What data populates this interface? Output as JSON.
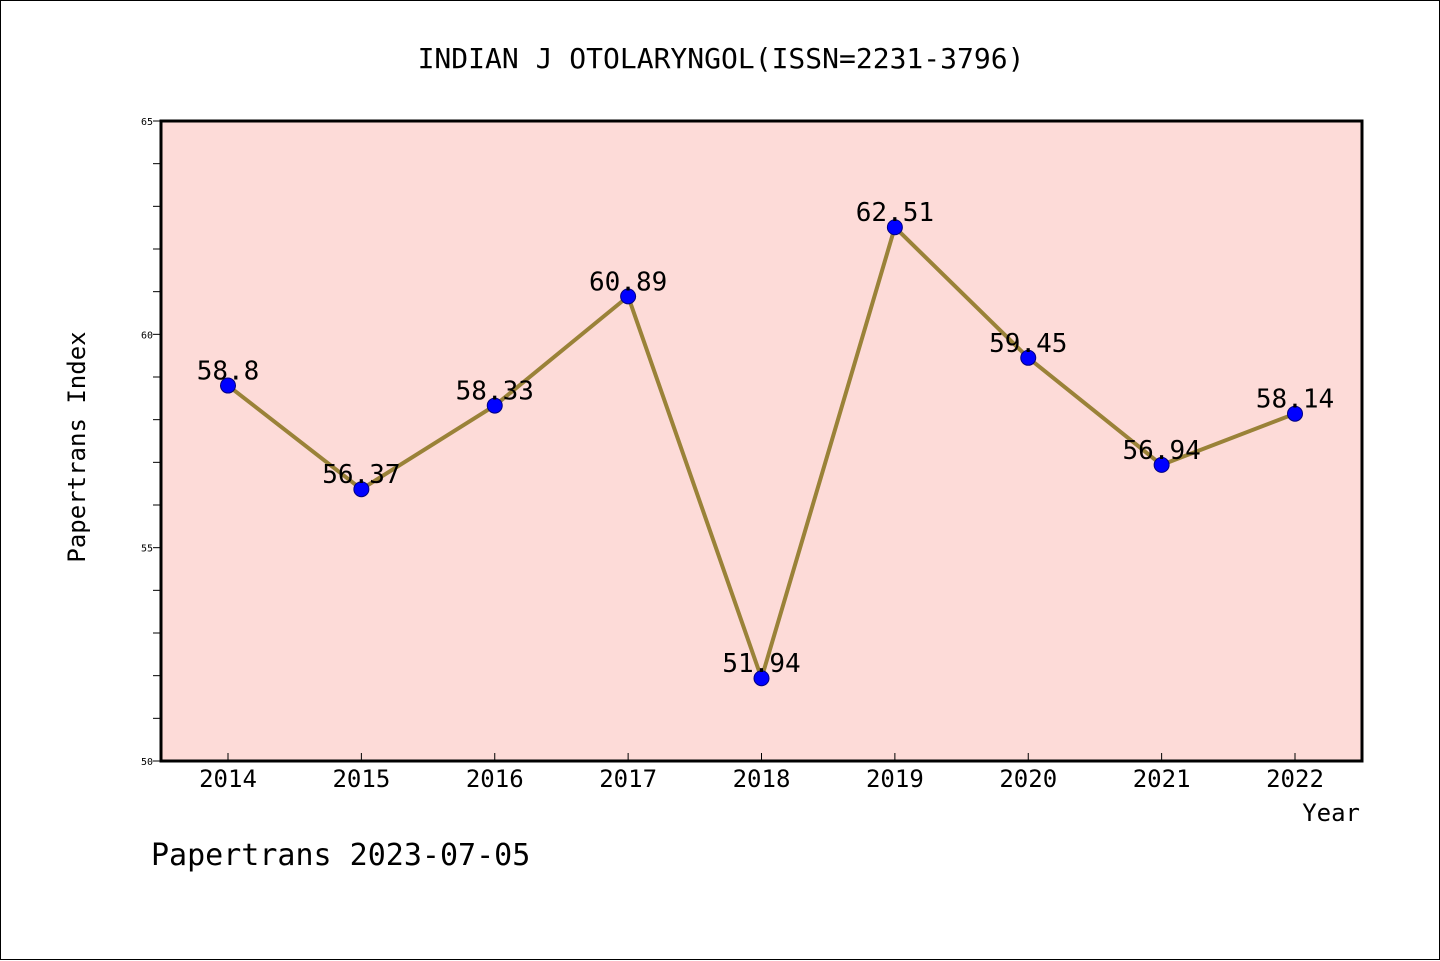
{
  "chart_data": {
    "type": "line",
    "title": "INDIAN J OTOLARYNGOL(ISSN=2231-3796)",
    "xlabel": "Year",
    "ylabel": "Papertrans Index",
    "categories": [
      "2014",
      "2015",
      "2016",
      "2017",
      "2018",
      "2019",
      "2020",
      "2021",
      "2022"
    ],
    "series": [
      {
        "values": [
          58.8,
          56.37,
          58.33,
          60.89,
          51.94,
          62.51,
          59.45,
          56.94,
          58.14
        ],
        "labels": [
          "58.8",
          "56.37",
          "58.33",
          "60.89",
          "51.94",
          "62.51",
          "59.45",
          "56.94",
          "58.14"
        ]
      }
    ],
    "ylim": [
      50,
      65
    ],
    "yticks": [
      "50",
      "55",
      "60",
      "65"
    ],
    "grid": false,
    "legend": "none"
  },
  "footer": {
    "text": "Papertrans 2023-07-05"
  },
  "colors": {
    "plot_background": "#fddbd8",
    "line": "#9a8238",
    "marker": "#0000ff",
    "marker_edge": "#000080",
    "axis": "#000000"
  }
}
